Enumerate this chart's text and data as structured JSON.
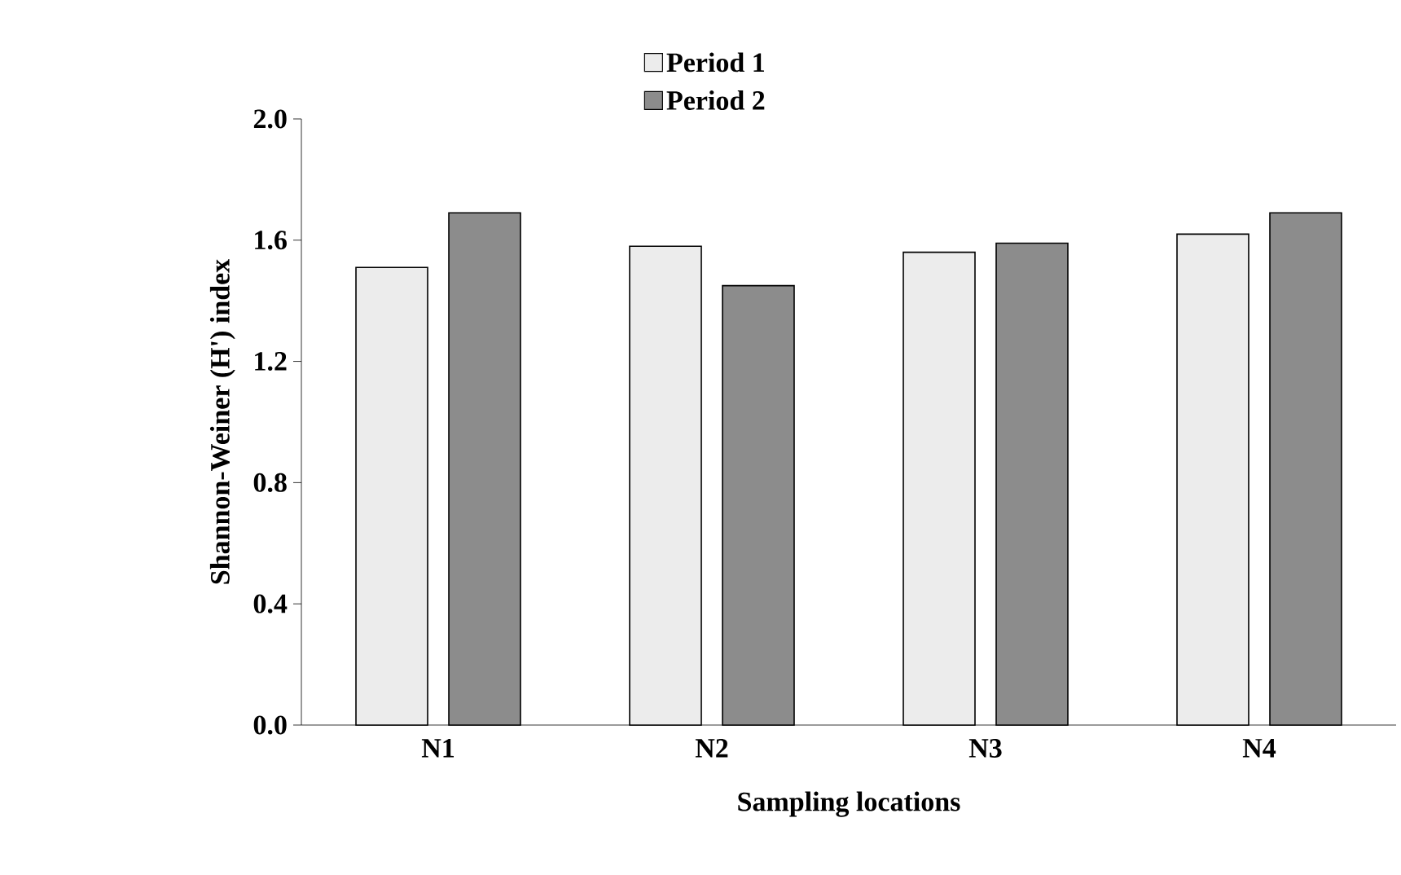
{
  "chart_data": {
    "type": "bar",
    "xlabel": "Sampling locations",
    "ylabel": "Shannon-Weiner (H') index",
    "categories": [
      "N1",
      "N2",
      "N3",
      "N4"
    ],
    "series": [
      {
        "name": "Period 1",
        "color": "#ececec",
        "values": [
          1.51,
          1.58,
          1.56,
          1.62
        ]
      },
      {
        "name": "Period 2",
        "color": "#8c8c8c",
        "values": [
          1.69,
          1.45,
          1.59,
          1.69
        ]
      }
    ],
    "ylim": [
      0,
      2.0
    ],
    "yticks": [
      {
        "value": 0,
        "label": "0.0"
      },
      {
        "value": 0.4,
        "label": "0.4"
      },
      {
        "value": 0.8,
        "label": "0.8"
      },
      {
        "value": 1.2,
        "label": "1.2"
      },
      {
        "value": 1.6,
        "label": "1.6"
      },
      {
        "value": 2.0,
        "label": "2.0"
      }
    ],
    "grid": false,
    "legend": "top"
  }
}
